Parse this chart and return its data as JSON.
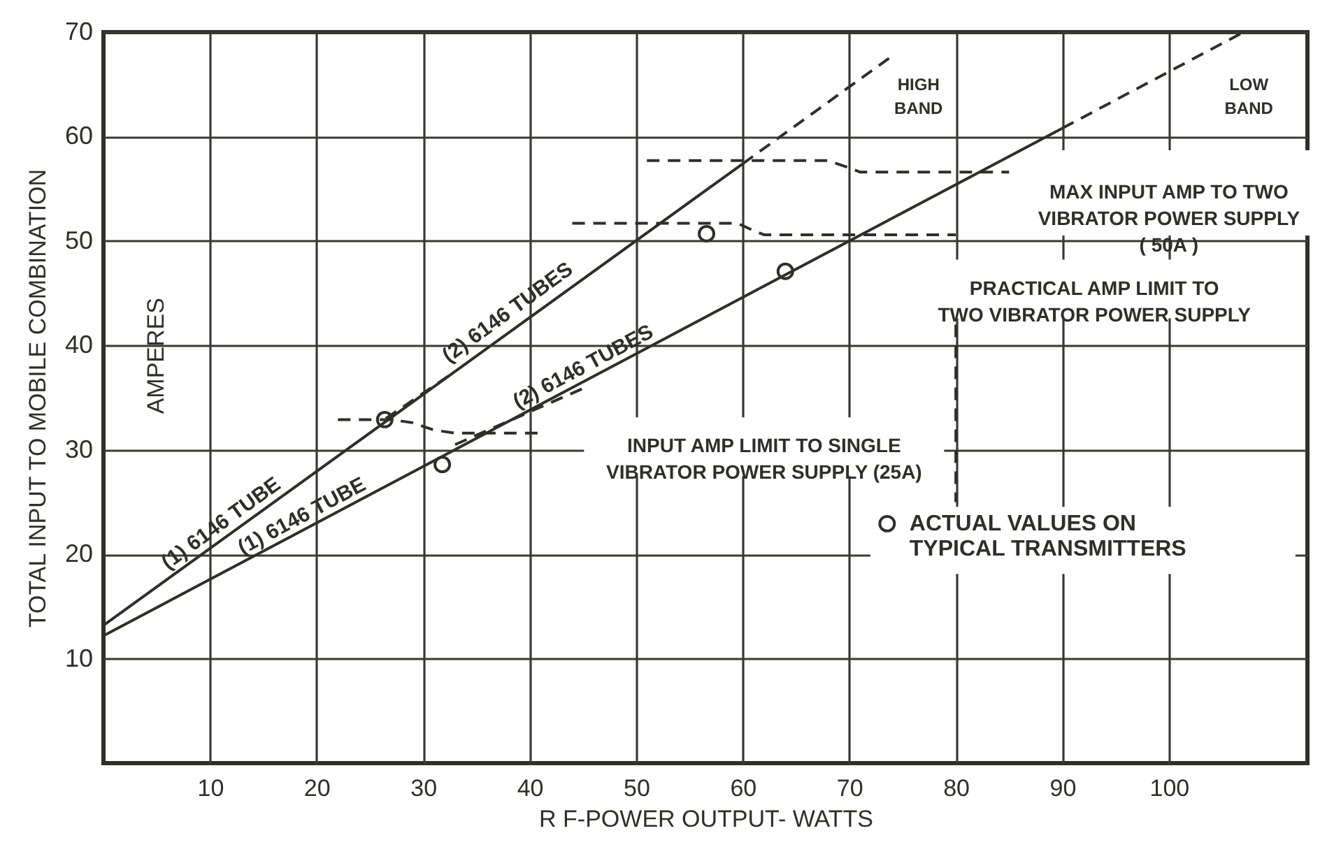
{
  "chart_data": {
    "type": "line",
    "xlabel": "R F-POWER OUTPUT- WATTS",
    "ylabel": "TOTAL INPUT TO MOBILE COMBINATION",
    "xlim": [
      0,
      113
    ],
    "xticks": [
      10,
      20,
      30,
      40,
      50,
      60,
      70,
      80,
      90,
      100
    ],
    "ylim": [
      0,
      70
    ],
    "yticks": [
      10,
      20,
      30,
      40,
      50,
      60,
      70
    ],
    "grid": true,
    "legend": "right",
    "series": [
      {
        "color": "#2f2f2a",
        "x": [
          0,
          60
        ],
        "values": [
          13.2,
          57.4
        ],
        "line_style": "solid"
      },
      {
        "color": "#2f2f2a",
        "x": [
          60,
          74
        ],
        "values": [
          57.4,
          67.7
        ],
        "line_style": "dashed"
      },
      {
        "color": "#2f2f2a",
        "x": [
          0,
          90
        ],
        "values": [
          12.2,
          60.8
        ],
        "line_style": "solid"
      },
      {
        "color": "#2f2f2a",
        "x": [
          90,
          107
        ],
        "values": [
          60.8,
          70
        ],
        "line_style": "dashed"
      },
      {
        "color": "#2f2f2a",
        "x": [
          26.5,
          33
        ],
        "values": [
          33,
          37.5
        ],
        "line_style": "dashed"
      },
      {
        "color": "#2f2f2a",
        "x": [
          33,
          45.5
        ],
        "values": [
          30.5,
          36.1
        ],
        "line_style": "dashed"
      },
      {
        "color": "#2f2f2a",
        "x": [
          22,
          27,
          29,
          31,
          33,
          41
        ],
        "values": [
          32.9,
          32.9,
          32.6,
          31.9,
          31.6,
          31.6
        ],
        "line_style": "dashed"
      },
      {
        "color": "#2f2f2a",
        "x": [
          51,
          68,
          70,
          71,
          85
        ],
        "values": [
          57.7,
          57.7,
          57,
          56.6,
          56.6
        ],
        "line_style": "dashed"
      },
      {
        "color": "#2f2f2a",
        "x": [
          44,
          59.5,
          61,
          62,
          80
        ],
        "values": [
          51.7,
          51.7,
          51,
          50.6,
          50.6
        ],
        "line_style": "dashed"
      },
      {
        "color": "#2f2f2a",
        "x": [
          80,
          80
        ],
        "values": [
          42,
          25
        ],
        "line_style": "dashed"
      },
      {
        "type": "scatter",
        "name": "ACTUAL VALUES ON\nTYPICAL TRANSMITTERS",
        "color": "#2f2f2a",
        "marker": "circle",
        "x": [
          26.4,
          31.8,
          56.6,
          64
        ],
        "values": [
          32.9,
          28.6,
          50.7,
          47.1
        ]
      }
    ],
    "annotations": [
      "(1) 6146 TUBE",
      "(1) 6146 TUBE",
      "(2) 6146 TUBES",
      "(2) 6146 TUBES",
      "HIGH\nBAND",
      "LOW\nBAND",
      "MAX INPUT AMP TO TWO\nVIBRATOR POWER SUPPLY\n( 50A )",
      "PRACTICAL AMP LIMIT TO\nTWO VIBRATOR POWER SUPPLY",
      "INPUT AMP LIMIT TO SINGLE\nVIBRATOR POWER SUPPLY (25A)",
      "AMPERES"
    ]
  }
}
